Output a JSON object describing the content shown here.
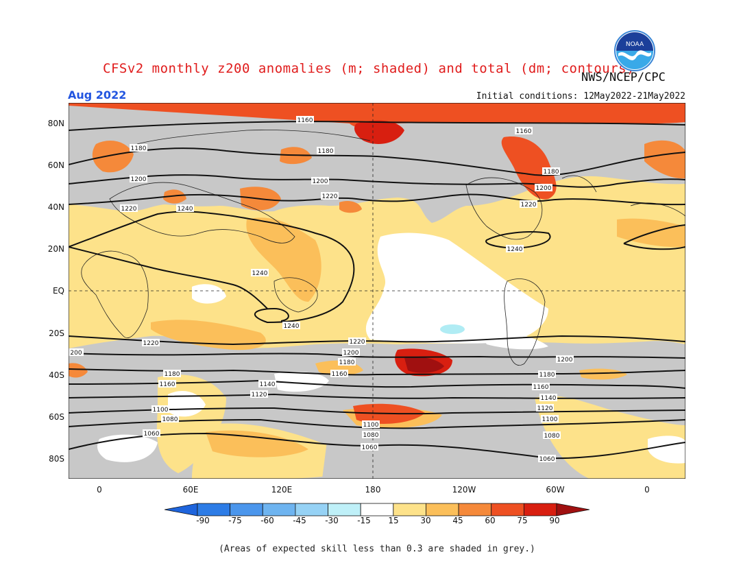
{
  "header": {
    "title": "CFSv2 monthly z200 anomalies (m; shaded) and total (dm; contours)",
    "agency": "NWS/NCEP/CPC",
    "month": "Aug 2022",
    "initial_conditions": "Initial conditions: 12May2022-21May2022",
    "logo_text": "NOAA"
  },
  "axes": {
    "lat_labels": [
      "80N",
      "60N",
      "40N",
      "20N",
      "EQ",
      "20S",
      "40S",
      "60S",
      "80S"
    ],
    "lon_labels": [
      "0",
      "60E",
      "120E",
      "180",
      "120W",
      "60W",
      "0"
    ]
  },
  "map": {
    "shading_colors": {
      "grey": "#c8c8c8",
      "white": "#ffffff",
      "light_yellow": "#fde28a",
      "yellow_orange": "#fbbf5a",
      "orange": "#f5893a",
      "orange_red": "#ee5022",
      "red": "#d81f10",
      "dark_red": "#a01010",
      "light_blue": "#b0ecf4"
    },
    "contour_labels": [
      "1160",
      "1160",
      "1180",
      "1180",
      "1180",
      "1200",
      "1200",
      "1200",
      "1220",
      "1220",
      "1220",
      "1240",
      "1240",
      "1240",
      "1240",
      "1220",
      "1220",
      "1200",
      "1200",
      "1180",
      "1160",
      "1180",
      "1160",
      "1140",
      "1120",
      "1100",
      "1080",
      "1060",
      "1100",
      "1080",
      "1060",
      "1180",
      "1160",
      "1140",
      "1120",
      "1100",
      "1080",
      "1060",
      "200",
      "1160",
      "1180"
    ]
  },
  "colorbar": {
    "labels": [
      "-90",
      "-75",
      "-60",
      "-45",
      "-30",
      "-15",
      "15",
      "30",
      "45",
      "60",
      "75",
      "90"
    ],
    "colors": [
      "#1e64dc",
      "#2d7ce6",
      "#4b96ec",
      "#6eb4f0",
      "#96d2f5",
      "#bff0f8",
      "#ffffff",
      "#fde28a",
      "#fbbf5a",
      "#f5893a",
      "#ee5022",
      "#d81f10",
      "#a01010"
    ]
  },
  "footer": {
    "note": "(Areas of expected skill less than 0.3 are shaded in grey.)"
  }
}
